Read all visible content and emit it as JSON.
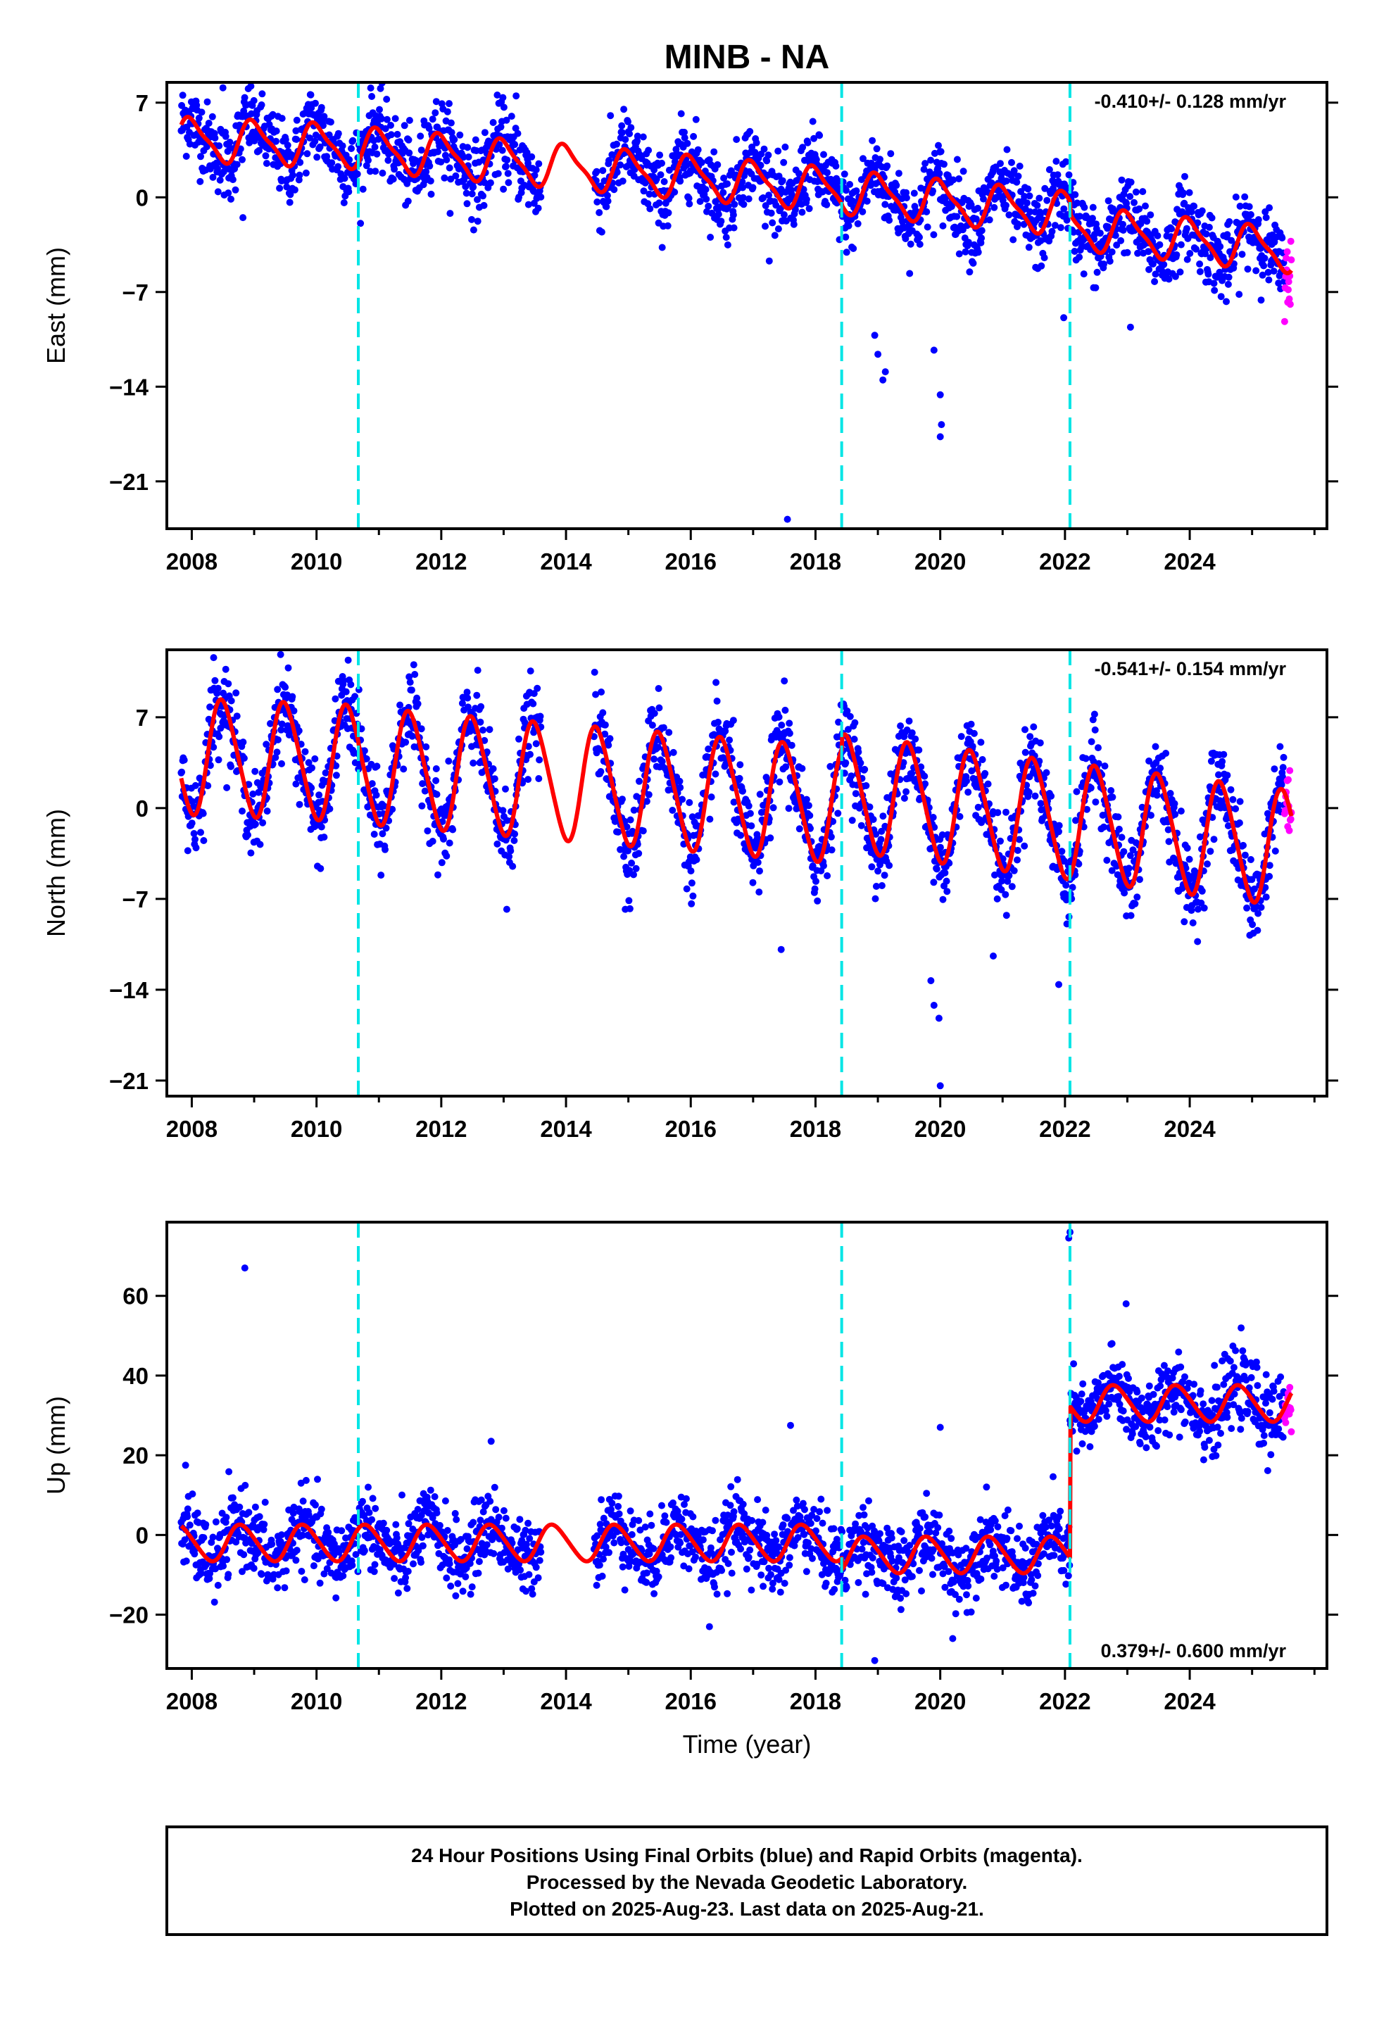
{
  "title": "MINB - NA",
  "xlabel": "Time (year)",
  "footer": {
    "line1": "24 Hour Positions Using Final Orbits (blue) and Rapid Orbits (magenta).",
    "line2": "Processed by the Nevada Geodetic Laboratory.",
    "line3": "Plotted on 2025-Aug-23. Last data on 2025-Aug-21."
  },
  "colors": {
    "final_orbits": "#0000ff",
    "rapid_orbits": "#ff00ff",
    "model_fit": "#ff0000",
    "offset_lines": "#00e5e5",
    "frame": "#000000"
  },
  "chart_data": [
    {
      "type": "scatter",
      "component": "East",
      "ylabel": "East (mm)",
      "rate": "-0.410+/- 0.128 mm/yr",
      "rate_position": "top-right",
      "xlim": [
        2007.6,
        2026.2
      ],
      "ylim": [
        -24.5,
        8.5
      ],
      "xticks": [
        2008,
        2010,
        2012,
        2014,
        2016,
        2018,
        2020,
        2022,
        2024
      ],
      "xtick_labels": [
        "2008",
        "2010",
        "2012",
        "2014",
        "2016",
        "2018",
        "2020",
        "2022",
        "2024"
      ],
      "yticks": [
        7,
        0,
        -7,
        -14,
        -21
      ],
      "ytick_labels": [
        "7",
        "0",
        "−7",
        "−14",
        "−21"
      ],
      "offsets": [
        2010.67,
        2018.42,
        2022.08
      ],
      "data_start": 2007.83,
      "data_end": 2025.63,
      "gap": [
        2013.6,
        2014.45
      ],
      "rapid_start": 2025.52,
      "model": {
        "segments": [
          [
            2007.83,
            2010.67,
            4.3,
            -0.2
          ],
          [
            2010.67,
            2018.42,
            3.6,
            -0.4
          ],
          [
            2018.42,
            2022.08,
            0.4,
            -0.45
          ],
          [
            2022.08,
            2025.63,
            -2.2,
            -0.5
          ]
        ],
        "annual_amplitude": 1.5,
        "annual_phase": 0.75,
        "semiannual_amplitude": 0.4
      },
      "scatter": 1.4,
      "outliers": [
        {
          "x": 2008.82,
          "y": -1.5
        },
        {
          "x": 2017.55,
          "y": -23.8
        },
        {
          "x": 2019.08,
          "y": -13.5
        },
        {
          "x": 2019.12,
          "y": -12.9
        },
        {
          "x": 2018.95,
          "y": -10.2
        },
        {
          "x": 2019.0,
          "y": -11.6
        },
        {
          "x": 2019.9,
          "y": -11.3
        },
        {
          "x": 2020.0,
          "y": -14.6
        },
        {
          "x": 2020.02,
          "y": -16.8
        },
        {
          "x": 2020.0,
          "y": -17.7
        },
        {
          "x": 2021.98,
          "y": -8.9
        },
        {
          "x": 2023.05,
          "y": -9.6
        },
        {
          "x": 2013.2,
          "y": 7.5
        },
        {
          "x": 2008.5,
          "y": 8.1
        }
      ]
    },
    {
      "type": "scatter",
      "component": "North",
      "ylabel": "North (mm)",
      "rate": "-0.541+/- 0.154 mm/yr",
      "rate_position": "top-right",
      "xlim": [
        2007.6,
        2026.2
      ],
      "ylim": [
        -22.2,
        12.2
      ],
      "xticks": [
        2008,
        2010,
        2012,
        2014,
        2016,
        2018,
        2020,
        2022,
        2024
      ],
      "xtick_labels": [
        "2008",
        "2010",
        "2012",
        "2014",
        "2016",
        "2018",
        "2020",
        "2022",
        "2024"
      ],
      "yticks": [
        7,
        0,
        -7,
        -14,
        -21
      ],
      "ytick_labels": [
        "7",
        "0",
        "−7",
        "−14",
        "−21"
      ],
      "offsets": [
        2010.67,
        2018.42,
        2022.08
      ],
      "data_start": 2007.83,
      "data_end": 2025.63,
      "gap": [
        2013.6,
        2014.45
      ],
      "rapid_start": 2025.52,
      "model": {
        "segments": [
          [
            2007.83,
            2010.67,
            4.0,
            -0.2
          ],
          [
            2010.67,
            2018.42,
            3.3,
            -0.4
          ],
          [
            2018.42,
            2022.08,
            1.2,
            -0.6
          ],
          [
            2022.08,
            2025.63,
            -1.0,
            -0.6
          ]
        ],
        "annual_amplitude": 4.4,
        "annual_phase": 0.25,
        "semiannual_amplitude": 0.5
      },
      "scatter": 1.6,
      "outliers": [
        {
          "x": 2008.35,
          "y": 11.6
        },
        {
          "x": 2013.05,
          "y": -7.8
        },
        {
          "x": 2014.95,
          "y": -7.8
        },
        {
          "x": 2017.45,
          "y": -10.9
        },
        {
          "x": 2017.5,
          "y": 9.8
        },
        {
          "x": 2019.85,
          "y": -13.3
        },
        {
          "x": 2019.98,
          "y": -16.2
        },
        {
          "x": 2019.9,
          "y": -15.2
        },
        {
          "x": 2020.0,
          "y": -21.4
        },
        {
          "x": 2020.85,
          "y": -11.4
        },
        {
          "x": 2021.9,
          "y": -13.6
        },
        {
          "x": 2019.55,
          "y": 5.8
        }
      ]
    },
    {
      "type": "scatter",
      "component": "Up",
      "ylabel": "Up (mm)",
      "rate": "0.379+/- 0.600 mm/yr",
      "rate_position": "bottom-right",
      "xlim": [
        2007.6,
        2026.2
      ],
      "ylim": [
        -33.5,
        78.5
      ],
      "xticks": [
        2008,
        2010,
        2012,
        2014,
        2016,
        2018,
        2020,
        2022,
        2024
      ],
      "xtick_labels": [
        "2008",
        "2010",
        "2012",
        "2014",
        "2016",
        "2018",
        "2020",
        "2022",
        "2024"
      ],
      "yticks": [
        60,
        40,
        20,
        0,
        -20
      ],
      "ytick_labels": [
        "60",
        "40",
        "20",
        "0",
        "−20"
      ],
      "offsets": [
        2010.67,
        2018.42,
        2022.08
      ],
      "data_start": 2007.83,
      "data_end": 2025.63,
      "gap": [
        2013.6,
        2014.45
      ],
      "rapid_start": 2025.52,
      "model": {
        "segments": [
          [
            2007.83,
            2010.67,
            -2.0,
            0.0
          ],
          [
            2010.67,
            2018.42,
            -2.0,
            0.0
          ],
          [
            2018.42,
            2022.08,
            -5.0,
            0.0
          ],
          [
            2022.08,
            2025.63,
            33.0,
            0.0
          ]
        ],
        "annual_amplitude": 4.5,
        "annual_phase": 0.55,
        "semiannual_amplitude": 0.5
      },
      "scatter": 4.6,
      "outliers": [
        {
          "x": 2008.85,
          "y": 67.0
        },
        {
          "x": 2017.6,
          "y": 27.5
        },
        {
          "x": 2020.0,
          "y": 27.0
        },
        {
          "x": 2022.08,
          "y": 76.0
        },
        {
          "x": 2022.06,
          "y": 74.5
        },
        {
          "x": 2022.98,
          "y": 58.0
        },
        {
          "x": 2018.95,
          "y": -31.5
        },
        {
          "x": 2020.2,
          "y": -26.0
        },
        {
          "x": 2016.3,
          "y": -23.0
        },
        {
          "x": 2012.8,
          "y": 23.5
        },
        {
          "x": 2007.9,
          "y": 17.5
        }
      ]
    }
  ]
}
